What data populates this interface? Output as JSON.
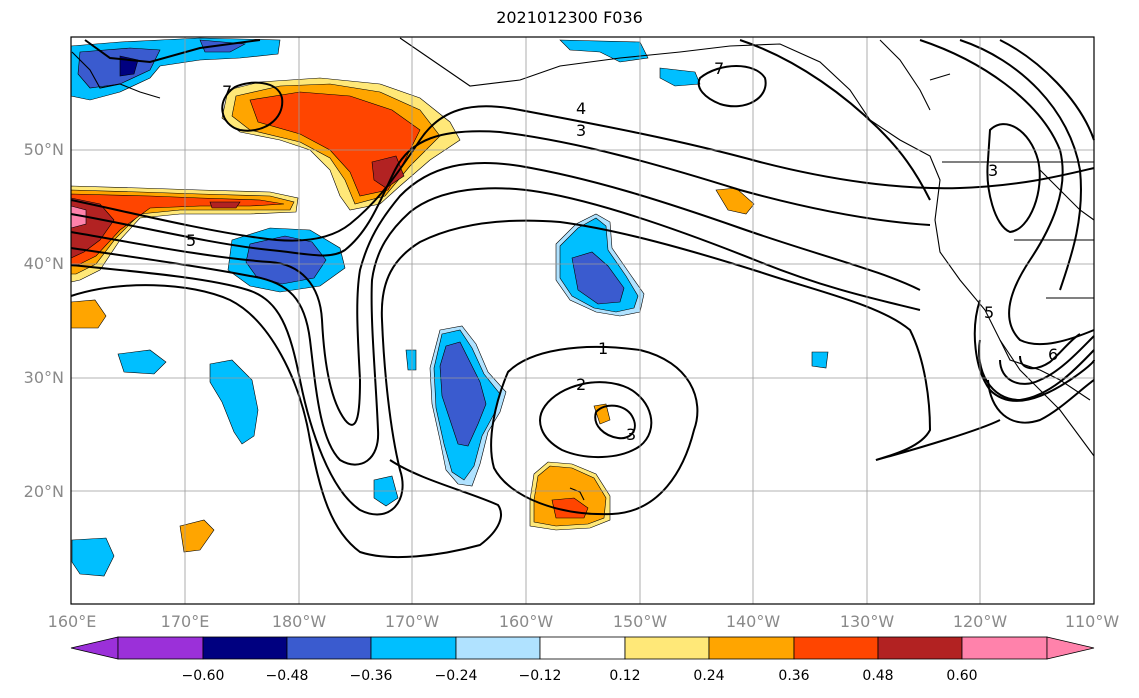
{
  "title": "2021012300 F036",
  "lat_labels": [
    "50°N",
    "40°N",
    "30°N",
    "20°N"
  ],
  "lon_labels": [
    "160°E",
    "170°E",
    "180°W",
    "170°W",
    "160°W",
    "150°W",
    "140°W",
    "130°W",
    "120°W",
    "110°W"
  ],
  "contour_labels": [
    "7",
    "4",
    "3",
    "5",
    "1",
    "2",
    "3",
    "3",
    "5",
    "6",
    "7"
  ],
  "colorbar": {
    "ticks": [
      "−0.60",
      "−0.48",
      "−0.36",
      "−0.24",
      "−0.12",
      "0.12",
      "0.24",
      "0.36",
      "0.48",
      "0.60"
    ],
    "colors": [
      "#9b30d9",
      "#000080",
      "#3a5bcf",
      "#00bfff",
      "#b0e2ff",
      "#ffffff",
      "#ffe878",
      "#ffa500",
      "#ff4500",
      "#b22222",
      "#ff82ab"
    ]
  },
  "map": {
    "lon_range": [
      "160°E",
      "110°W"
    ],
    "lat_range": [
      10,
      60
    ],
    "gridlines": true
  }
}
